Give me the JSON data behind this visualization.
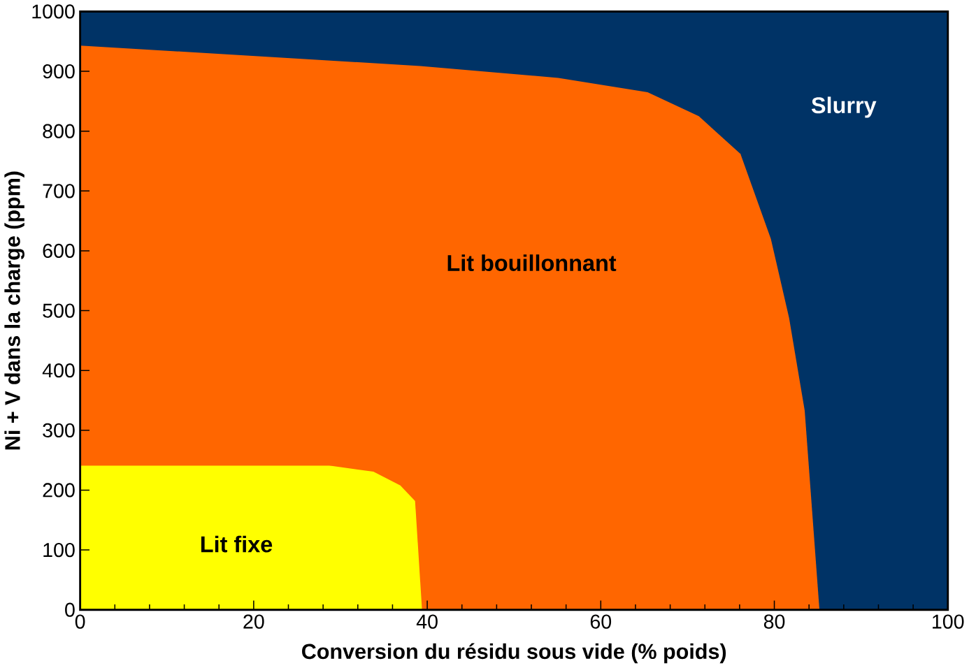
{
  "chart_data": {
    "type": "area",
    "xlabel": "Conversion du résidu sous vide (% poids)",
    "ylabel": "Ni + V dans la charge (ppm)",
    "xlim": [
      0,
      100
    ],
    "ylim": [
      0,
      1000
    ],
    "xticks": [
      0,
      20,
      40,
      60,
      80,
      100
    ],
    "yticks": [
      0,
      100,
      200,
      300,
      400,
      500,
      600,
      700,
      800,
      900,
      1000
    ],
    "series": [
      {
        "name": "Slurry",
        "color": "#003366",
        "x": [
          0,
          100
        ],
        "values": [
          1000,
          1000
        ]
      },
      {
        "name": "Lit bouillonnant",
        "color": "#ff6600",
        "x": [
          0,
          39.2,
          55.1,
          65.4,
          71.3,
          76.1,
          79.6,
          81.7,
          83.5,
          85.2
        ],
        "values": [
          943,
          909,
          889,
          865,
          825,
          762,
          620,
          488,
          333,
          0
        ]
      },
      {
        "name": "Lit fixe",
        "color": "#ffff00",
        "x": [
          0,
          28.7,
          33.8,
          36.9,
          38.6,
          39.4
        ],
        "values": [
          241,
          241,
          231,
          208,
          182,
          0
        ]
      }
    ]
  }
}
